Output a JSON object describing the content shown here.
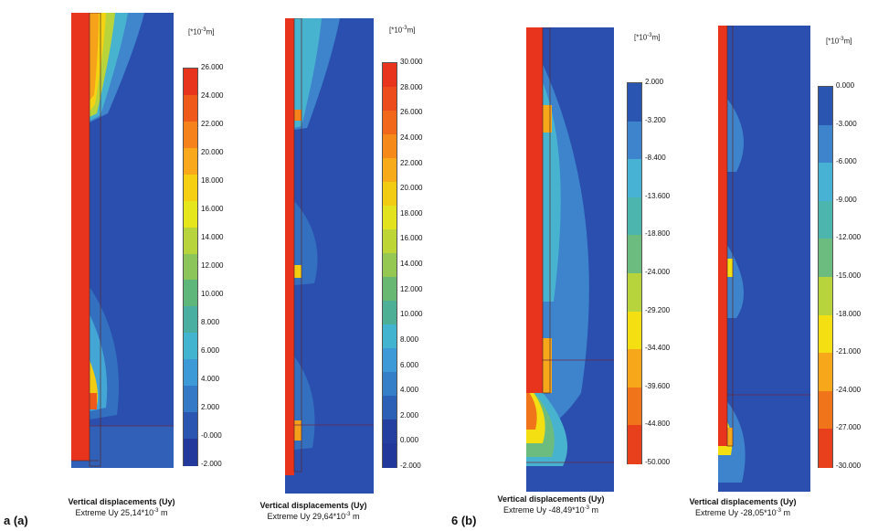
{
  "panels": [
    {
      "unit_pre": "[*10",
      "unit_exp": "-3",
      "unit_post": "m]",
      "title": "Vertical displacements (Uy)",
      "extreme_pre": "Extreme Uy 25,14*10",
      "extreme_exp": "-3",
      "extreme_post": " m",
      "ticks": [
        "26.000",
        "24.000",
        "22.000",
        "20.000",
        "18.000",
        "16.000",
        "14.000",
        "12.000",
        "10.000",
        "8.000",
        "6.000",
        "4.000",
        "2.000",
        "-0.000",
        "-2.000"
      ],
      "colors": [
        "#e8341c",
        "#ef5a1a",
        "#f5821a",
        "#f8a81a",
        "#f4cf12",
        "#e6e61c",
        "#b7d43c",
        "#8cc65a",
        "#5fb67a",
        "#4aaea0",
        "#43b4cf",
        "#3d9ad6",
        "#3479c6",
        "#2a55b1",
        "#23399c"
      ]
    },
    {
      "unit_pre": "[*10",
      "unit_exp": "-3",
      "unit_post": "m]",
      "title": "Vertical displacements (Uy)",
      "extreme_pre": "Extreme Uy 29,64*10",
      "extreme_exp": "-3",
      "extreme_post": " m",
      "ticks": [
        "30.000",
        "28.000",
        "26.000",
        "24.000",
        "22.000",
        "20.000",
        "18.000",
        "16.000",
        "14.000",
        "12.000",
        "10.000",
        "8.000",
        "6.000",
        "4.000",
        "2.000",
        "0.000",
        "-2.000"
      ],
      "colors": [
        "#e8341c",
        "#ec4c1b",
        "#f1681a",
        "#f58a1a",
        "#f8ab1a",
        "#f2cc12",
        "#e2e21e",
        "#bdd636",
        "#94c852",
        "#68b874",
        "#4db096",
        "#43b4cf",
        "#3d9ad6",
        "#357ec8",
        "#2c5fb6",
        "#243fa0",
        "#22389a"
      ]
    },
    {
      "unit_pre": "[*10",
      "unit_exp": "-3",
      "unit_post": "m]",
      "title": "Vertical displacements (Uy)",
      "extreme_pre": "Extreme Uy -48,49*10",
      "extreme_exp": "-3",
      "extreme_post": " m",
      "ticks": [
        "2.000",
        "-3.200",
        "-8.400",
        "-13.600",
        "-18.800",
        "-24.000",
        "-29.200",
        "-34.400",
        "-39.600",
        "-44.800",
        "-50.000"
      ],
      "colors": [
        "#2a55b1",
        "#3d84cc",
        "#48b2d4",
        "#4cb6ae",
        "#6cbc80",
        "#b8d43c",
        "#f4e012",
        "#f6a81a",
        "#f0741a",
        "#e8401c"
      ]
    },
    {
      "unit_pre": "[*10",
      "unit_exp": "-3",
      "unit_post": "m]",
      "title": "Vertical displacements (Uy)",
      "extreme_pre": "Extreme Uy -28,05*10",
      "extreme_exp": "-3",
      "extreme_post": " m",
      "ticks": [
        "0.000",
        "-3.000",
        "-6.000",
        "-9.000",
        "-12.000",
        "-15.000",
        "-18.000",
        "-21.000",
        "-24.000",
        "-27.000",
        "-30.000"
      ],
      "colors": [
        "#2a55b1",
        "#3d84cc",
        "#48b2d4",
        "#4cb6ae",
        "#6cbc80",
        "#b8d43c",
        "#f4e012",
        "#f6a81a",
        "#f0741a",
        "#e8401c"
      ]
    }
  ],
  "labels": {
    "a": "a (a)",
    "b": "6 (b)"
  }
}
